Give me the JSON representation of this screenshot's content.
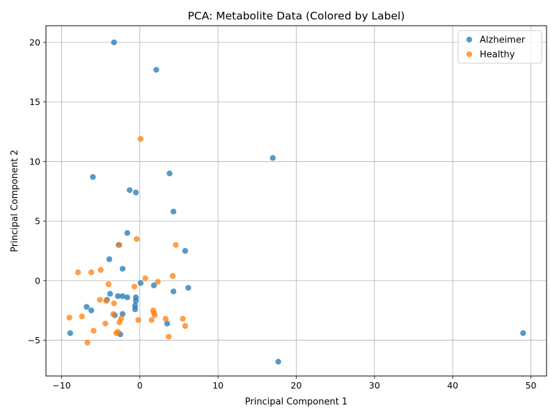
{
  "chart_data": {
    "type": "scatter",
    "title": "PCA: Metabolite Data (Colored by Label)",
    "xlabel": "Principal Component 1",
    "ylabel": "Principal Component 2",
    "xlim": [
      -12,
      52
    ],
    "ylim": [
      -8,
      21.4
    ],
    "xticks": [
      -10,
      0,
      10,
      20,
      30,
      40,
      50
    ],
    "yticks": [
      -5,
      0,
      5,
      10,
      15,
      20
    ],
    "grid": true,
    "legend_position": "top-right",
    "series": [
      {
        "name": "Alzheimer",
        "color": "#1f77b4",
        "points": [
          [
            -3.3,
            20.0
          ],
          [
            2.1,
            17.7
          ],
          [
            17.0,
            10.3
          ],
          [
            -6.0,
            8.7
          ],
          [
            3.8,
            9.0
          ],
          [
            -1.3,
            7.6
          ],
          [
            -0.5,
            7.4
          ],
          [
            4.3,
            5.8
          ],
          [
            -1.6,
            4.0
          ],
          [
            5.8,
            2.5
          ],
          [
            -2.7,
            3.0
          ],
          [
            -3.9,
            1.8
          ],
          [
            -2.2,
            1.0
          ],
          [
            0.1,
            -0.2
          ],
          [
            1.8,
            -0.4
          ],
          [
            6.2,
            -0.6
          ],
          [
            4.3,
            -0.9
          ],
          [
            -3.8,
            -1.1
          ],
          [
            -2.8,
            -1.3
          ],
          [
            -2.2,
            -1.3
          ],
          [
            -1.6,
            -1.4
          ],
          [
            -0.5,
            -1.4
          ],
          [
            -0.5,
            -1.7
          ],
          [
            -4.2,
            -1.6
          ],
          [
            -0.6,
            -2.1
          ],
          [
            -6.8,
            -2.2
          ],
          [
            -0.6,
            -2.4
          ],
          [
            -6.2,
            -2.5
          ],
          [
            -2.2,
            -2.8
          ],
          [
            -3.2,
            -2.9
          ],
          [
            3.5,
            -3.6
          ],
          [
            -8.9,
            -4.4
          ],
          [
            -2.5,
            -4.5
          ],
          [
            49.0,
            -4.4
          ],
          [
            17.7,
            -6.8
          ]
        ]
      },
      {
        "name": "Healthy",
        "color": "#ff7f0e",
        "points": [
          [
            0.1,
            11.9
          ],
          [
            -0.4,
            3.5
          ],
          [
            -2.6,
            3.0
          ],
          [
            4.6,
            3.0
          ],
          [
            -5.0,
            0.9
          ],
          [
            -7.9,
            0.7
          ],
          [
            -6.2,
            0.7
          ],
          [
            4.2,
            0.4
          ],
          [
            0.7,
            0.2
          ],
          [
            2.3,
            -0.1
          ],
          [
            -4.0,
            -0.3
          ],
          [
            -0.7,
            -0.5
          ],
          [
            -5.1,
            -1.6
          ],
          [
            -4.3,
            -1.7
          ],
          [
            -3.3,
            -1.9
          ],
          [
            1.7,
            -2.5
          ],
          [
            1.8,
            -2.7
          ],
          [
            -3.4,
            -2.8
          ],
          [
            1.9,
            -2.9
          ],
          [
            -9.0,
            -3.1
          ],
          [
            -7.4,
            -3.0
          ],
          [
            -2.4,
            -3.2
          ],
          [
            3.3,
            -3.2
          ],
          [
            5.5,
            -3.2
          ],
          [
            1.5,
            -3.3
          ],
          [
            -0.2,
            -3.3
          ],
          [
            -2.6,
            -3.5
          ],
          [
            -4.4,
            -3.6
          ],
          [
            5.8,
            -3.8
          ],
          [
            -5.9,
            -4.2
          ],
          [
            -2.8,
            -4.3
          ],
          [
            -3.0,
            -4.4
          ],
          [
            3.7,
            -4.7
          ],
          [
            -6.7,
            -5.2
          ]
        ]
      }
    ]
  }
}
